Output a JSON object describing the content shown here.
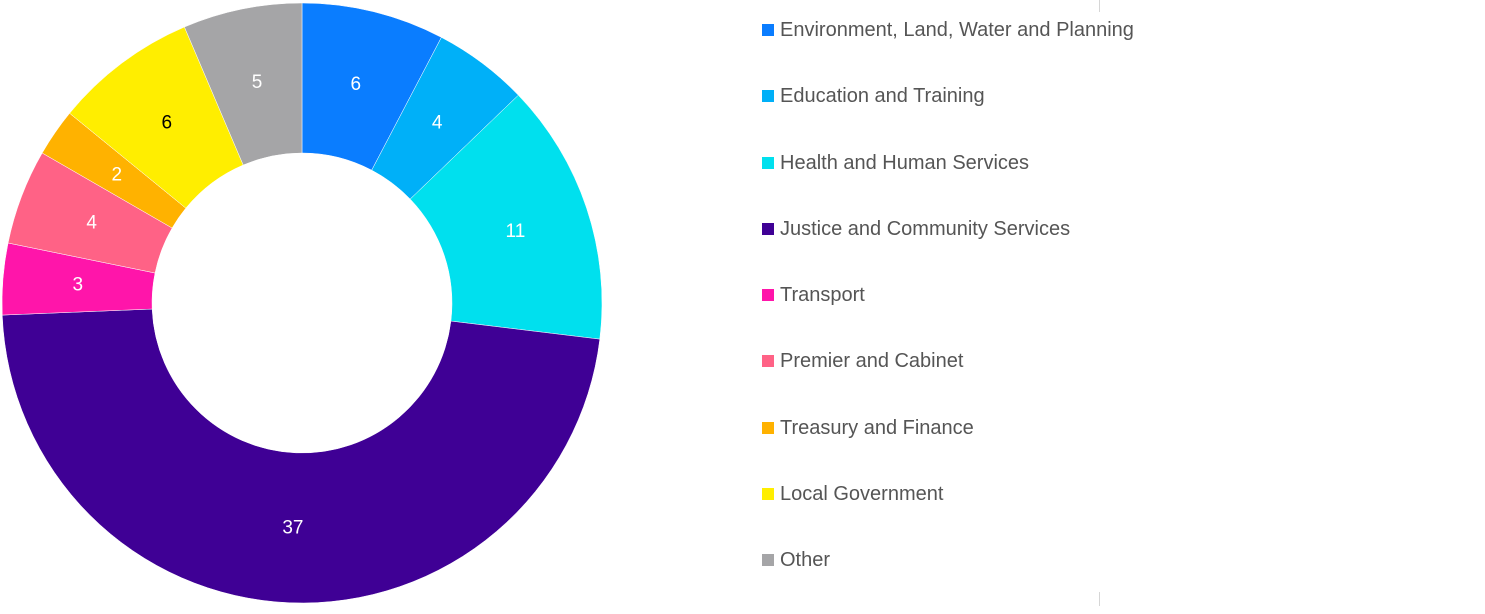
{
  "chart_data": {
    "type": "pie",
    "donut": true,
    "categories": [
      "Environment, Land, Water and Planning",
      "Education and Training",
      "Health and Human Services",
      "Justice and Community Services",
      "Transport",
      "Premier and Cabinet",
      "Treasury and Finance",
      "Local Government",
      "Other"
    ],
    "values": [
      6,
      4,
      11,
      37,
      3,
      4,
      2,
      6,
      5
    ],
    "labels": [
      "6",
      "4",
      "11",
      "37",
      "3",
      "4",
      "2",
      "6",
      "5"
    ],
    "colors": [
      "#0A7DFF",
      "#00B0F8",
      "#00E0EE",
      "#3F0095",
      "#FF15AA",
      "#FF6286",
      "#FFB200",
      "#FFEE00",
      "#A5A5A7"
    ],
    "label_colors": [
      "#FFFFFF",
      "#FFFFFF",
      "#FFFFFF",
      "#FFFFFF",
      "#FFFFFF",
      "#FFFFFF",
      "#FFFFFF",
      "#000000",
      "#FFFFFF"
    ],
    "legend_position": "right"
  }
}
